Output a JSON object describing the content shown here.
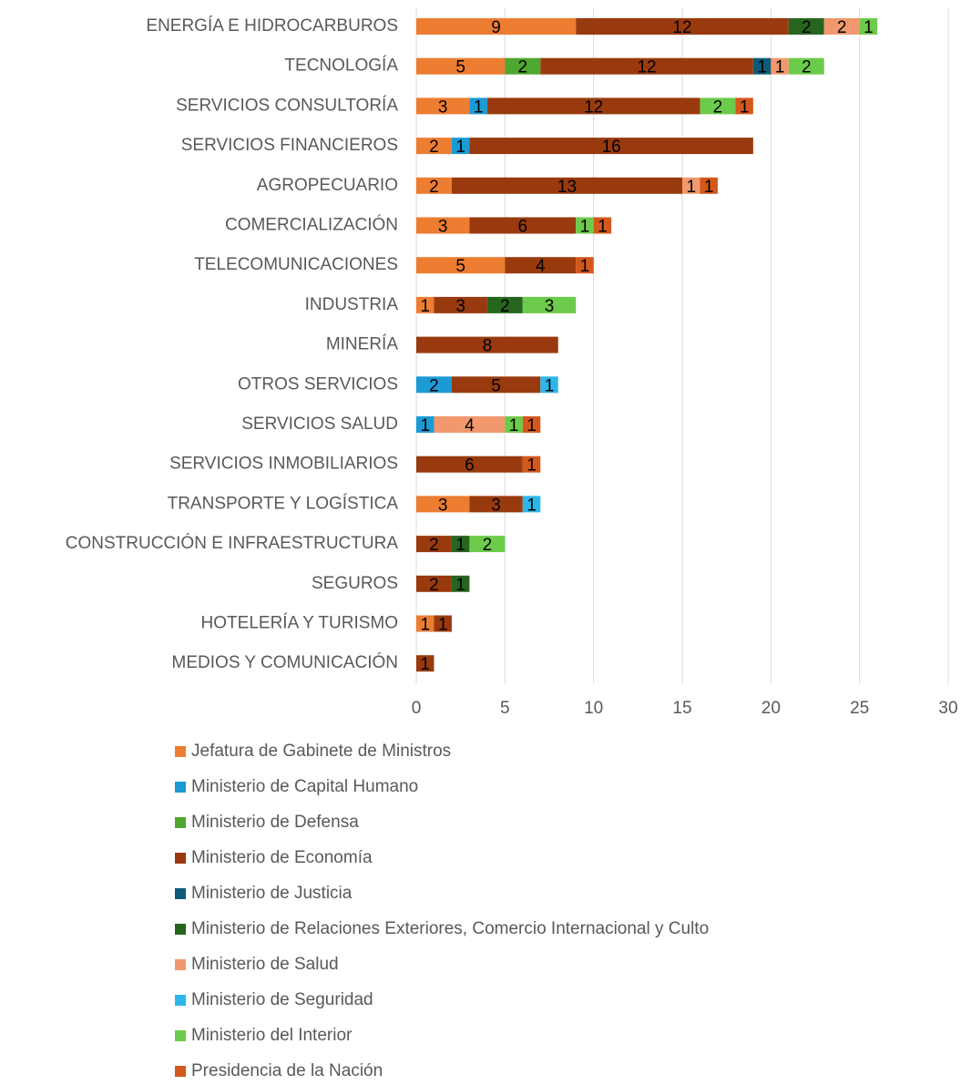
{
  "chart_data": {
    "type": "stacked-barh",
    "categories": [
      "ENERGÍA E HIDROCARBUROS",
      "TECNOLOGÍA",
      "SERVICIOS CONSULTORÍA",
      "SERVICIOS FINANCIEROS",
      "AGROPECUARIO",
      "COMERCIALIZACIÓN",
      "TELECOMUNICACIONES",
      "INDUSTRIA",
      "MINERÍA",
      "OTROS SERVICIOS",
      "SERVICIOS SALUD",
      "SERVICIOS INMOBILIARIOS",
      "TRANSPORTE Y LOGÍSTICA",
      "CONSTRUCCIÓN E INFRAESTRUCTURA",
      "SEGUROS",
      "HOTELERÍA Y TURISMO",
      "MEDIOS Y COMUNICACIÓN"
    ],
    "series": [
      {
        "name": "Jefatura de Gabinete de Ministros",
        "color": "#ED7D31",
        "values": [
          9,
          5,
          3,
          2,
          2,
          3,
          5,
          1,
          null,
          null,
          null,
          null,
          3,
          null,
          null,
          1,
          null
        ]
      },
      {
        "name": "Ministerio de Capital Humano",
        "color": "#1B9AD6",
        "values": [
          null,
          null,
          1,
          1,
          null,
          null,
          null,
          null,
          null,
          2,
          1,
          null,
          null,
          null,
          null,
          null,
          null
        ]
      },
      {
        "name": "Ministerio de Defensa",
        "color": "#4EA72E",
        "values": [
          null,
          2,
          null,
          null,
          null,
          null,
          null,
          null,
          null,
          null,
          null,
          null,
          null,
          null,
          null,
          null,
          null
        ]
      },
      {
        "name": "Ministerio de Economía",
        "color": "#993A0E",
        "values": [
          12,
          12,
          12,
          16,
          13,
          6,
          4,
          3,
          8,
          5,
          null,
          6,
          3,
          2,
          2,
          1,
          1
        ]
      },
      {
        "name": "Ministerio de Justicia",
        "color": "#0E5A78",
        "values": [
          null,
          1,
          null,
          null,
          null,
          null,
          null,
          null,
          null,
          null,
          null,
          null,
          null,
          null,
          null,
          null,
          null
        ]
      },
      {
        "name": "Ministerio de Relaciones Exteriores, Comercio Internacional y Culto",
        "color": "#27651F",
        "values": [
          2,
          null,
          null,
          null,
          null,
          null,
          null,
          2,
          null,
          null,
          null,
          null,
          null,
          1,
          1,
          null,
          null
        ]
      },
      {
        "name": "Ministerio de Salud",
        "color": "#F1986E",
        "values": [
          2,
          1,
          null,
          null,
          1,
          null,
          null,
          null,
          null,
          null,
          4,
          null,
          null,
          null,
          null,
          null,
          null
        ]
      },
      {
        "name": "Ministerio de Seguridad",
        "color": "#2CB6EA",
        "values": [
          null,
          null,
          null,
          null,
          null,
          null,
          null,
          null,
          null,
          1,
          null,
          null,
          1,
          null,
          null,
          null,
          null
        ]
      },
      {
        "name": "Ministerio del Interior",
        "color": "#6DCB4B",
        "values": [
          1,
          2,
          2,
          null,
          null,
          1,
          null,
          3,
          null,
          null,
          1,
          null,
          null,
          2,
          null,
          null,
          null
        ]
      },
      {
        "name": "Presidencia de la Nación",
        "color": "#D4581C",
        "values": [
          null,
          null,
          1,
          null,
          1,
          1,
          1,
          null,
          null,
          null,
          1,
          1,
          null,
          null,
          null,
          null,
          null
        ]
      }
    ],
    "xlim": [
      0,
      30
    ],
    "xticks": [
      0,
      5,
      10,
      15,
      20,
      25,
      30
    ],
    "grid": true,
    "legend": "bottom"
  }
}
